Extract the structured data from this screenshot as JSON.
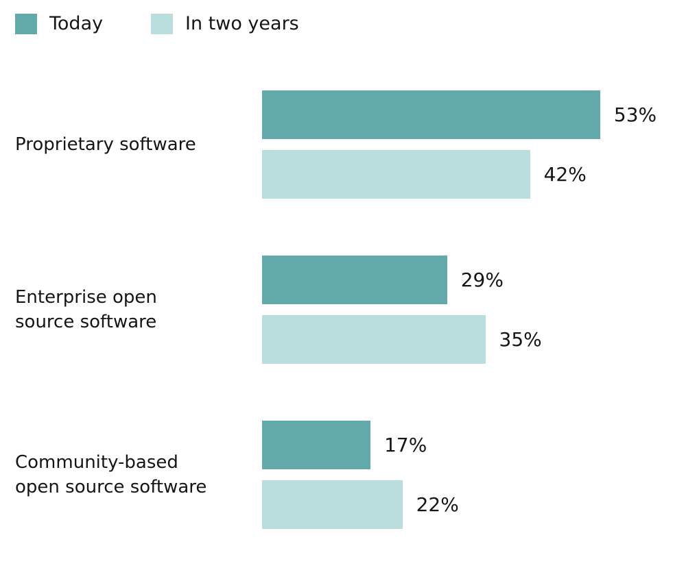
{
  "chart_data": {
    "type": "bar",
    "orientation": "horizontal",
    "categories": [
      "Proprietary software",
      "Enterprise open\nsource software",
      "Community-based\nopen source software"
    ],
    "series": [
      {
        "name": "Today",
        "color": "#62aaa9",
        "values": [
          53,
          29,
          17
        ],
        "value_labels": [
          "53%",
          "29%",
          "17%"
        ]
      },
      {
        "name": "In two years",
        "color": "#badddd",
        "values": [
          42,
          35,
          22
        ],
        "value_labels": [
          "42%",
          "35%",
          "22%"
        ]
      }
    ],
    "legend": "top-left"
  }
}
